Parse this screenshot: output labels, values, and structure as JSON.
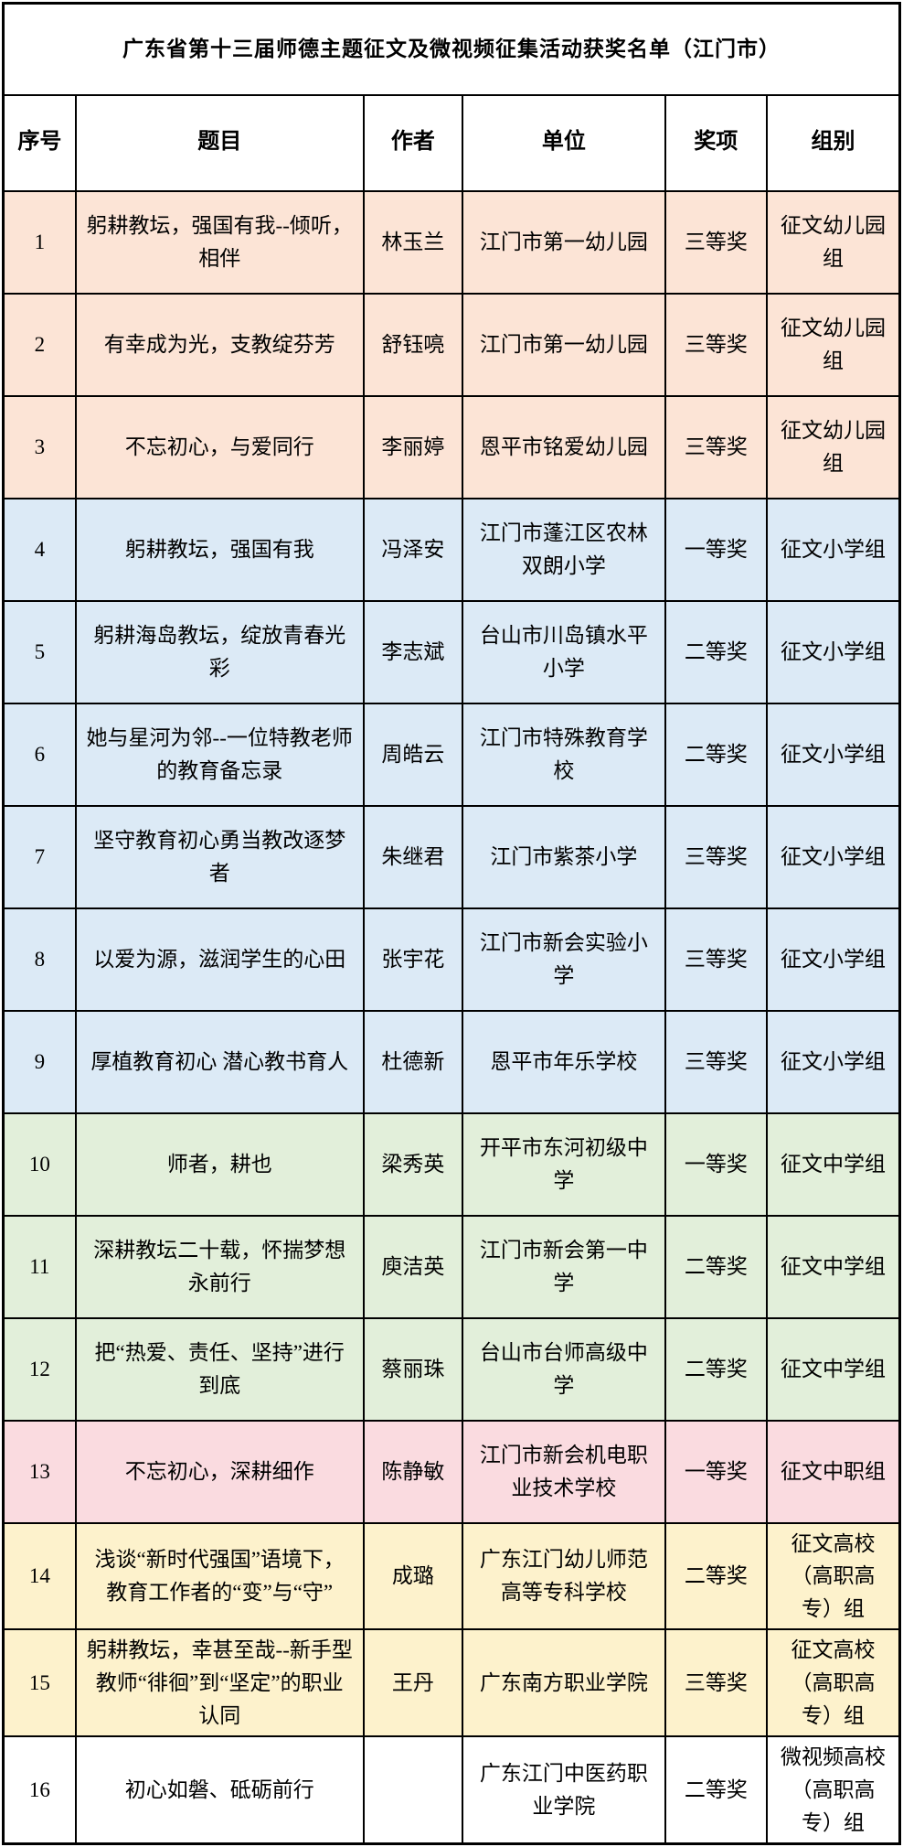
{
  "title": "广东省第十三届师德主题征文及微视频征集活动获奖名单（江门市）",
  "colors": {
    "kindergarten_group_bg": "#FCE4D6",
    "primary_group_bg": "#DCEAF6",
    "middle_group_bg": "#E2EFDA",
    "vocational_group_bg": "#FADBE0",
    "college_group_bg": "#FDF2CC",
    "video_group_bg": "#FFFFFF",
    "border": "#000000",
    "text": "#000000"
  },
  "table": {
    "headers": {
      "no": "序号",
      "title": "题目",
      "author": "作者",
      "unit": "单位",
      "award": "奖项",
      "group": "组别"
    },
    "rows": [
      {
        "no": "1",
        "title": "躬耕教坛，强国有我--倾听，相伴",
        "author": "林玉兰",
        "unit": "江门市第一幼儿园",
        "award": "三等奖",
        "group": "征文幼儿园组",
        "color": "#FCE4D6"
      },
      {
        "no": "2",
        "title": "有幸成为光，支教绽芬芳",
        "author": "舒钰喨",
        "unit": "江门市第一幼儿园",
        "award": "三等奖",
        "group": "征文幼儿园组",
        "color": "#FCE4D6"
      },
      {
        "no": "3",
        "title": "不忘初心，与爱同行",
        "author": "李丽婷",
        "unit": "恩平市铭爱幼儿园",
        "award": "三等奖",
        "group": "征文幼儿园组",
        "color": "#FCE4D6"
      },
      {
        "no": "4",
        "title": "躬耕教坛，强国有我",
        "author": "冯泽安",
        "unit": "江门市蓬江区农林双朗小学",
        "award": "一等奖",
        "group": "征文小学组",
        "color": "#DCEAF6"
      },
      {
        "no": "5",
        "title": "躬耕海岛教坛，绽放青春光彩",
        "author": "李志斌",
        "unit": "台山市川岛镇水平小学",
        "award": "二等奖",
        "group": "征文小学组",
        "color": "#DCEAF6"
      },
      {
        "no": "6",
        "title": "她与星河为邻--一位特教老师的教育备忘录",
        "author": "周皓云",
        "unit": "江门市特殊教育学校",
        "award": "二等奖",
        "group": "征文小学组",
        "color": "#DCEAF6"
      },
      {
        "no": "7",
        "title": "坚守教育初心勇当教改逐梦者",
        "author": "朱继君",
        "unit": "江门市紫茶小学",
        "award": "三等奖",
        "group": "征文小学组",
        "color": "#DCEAF6"
      },
      {
        "no": "8",
        "title": "以爱为源，滋润学生的心田",
        "author": "张宇花",
        "unit": "江门市新会实验小学",
        "award": "三等奖",
        "group": "征文小学组",
        "color": "#DCEAF6"
      },
      {
        "no": "9",
        "title": "厚植教育初心 潜心教书育人",
        "author": "杜德新",
        "unit": "恩平市年乐学校",
        "award": "三等奖",
        "group": "征文小学组",
        "color": "#DCEAF6"
      },
      {
        "no": "10",
        "title": "师者，耕也",
        "author": "梁秀英",
        "unit": "开平市东河初级中学",
        "award": "一等奖",
        "group": "征文中学组",
        "color": "#E2EFDA"
      },
      {
        "no": "11",
        "title": "深耕教坛二十载，怀揣梦想永前行",
        "author": "庾洁英",
        "unit": "江门市新会第一中学",
        "award": "二等奖",
        "group": "征文中学组",
        "color": "#E2EFDA"
      },
      {
        "no": "12",
        "title": "把“热爱、责任、坚持”进行到底",
        "author": "蔡丽珠",
        "unit": "台山市台师高级中学",
        "award": "二等奖",
        "group": "征文中学组",
        "color": "#E2EFDA"
      },
      {
        "no": "13",
        "title": "不忘初心，深耕细作",
        "author": "陈静敏",
        "unit": "江门市新会机电职业技术学校",
        "award": "一等奖",
        "group": "征文中职组",
        "color": "#FADBE0"
      },
      {
        "no": "14",
        "title": "浅谈“新时代强国”语境下，教育工作者的“变”与“守”",
        "author": "成璐",
        "unit": "广东江门幼儿师范高等专科学校",
        "award": "二等奖",
        "group": "征文高校（高职高专）组",
        "color": "#FDF2CC"
      },
      {
        "no": "15",
        "title": "躬耕教坛，幸甚至哉--新手型教师“徘徊”到“坚定”的职业认同",
        "author": "王丹",
        "unit": "广东南方职业学院",
        "award": "三等奖",
        "group": "征文高校（高职高专）组",
        "color": "#FDF2CC"
      },
      {
        "no": "16",
        "title": "初心如磐、砥砺前行",
        "author": "",
        "unit": "广东江门中医药职业学院",
        "award": "二等奖",
        "group": "微视频高校（高职高专）组",
        "color": "#FFFFFF"
      }
    ]
  }
}
